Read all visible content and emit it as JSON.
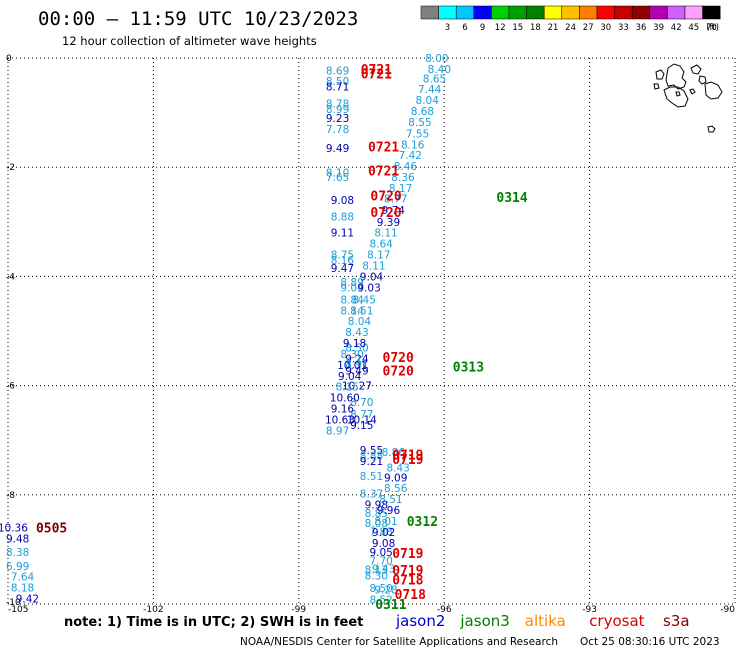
{
  "header": {
    "title": "00:00 – 11:59 UTC 10/23/2023",
    "subtitle": "12 hour collection of altimeter wave heights"
  },
  "legend": {
    "unit": "(ft)",
    "bins": [
      {
        "label": "",
        "color": "#808080"
      },
      {
        "label": "3",
        "color": "#00ffff"
      },
      {
        "label": "6",
        "color": "#00c8ff"
      },
      {
        "label": "9",
        "color": "#0000ff"
      },
      {
        "label": "12",
        "color": "#00d000"
      },
      {
        "label": "15",
        "color": "#00a000"
      },
      {
        "label": "18",
        "color": "#008000"
      },
      {
        "label": "21",
        "color": "#ffff00"
      },
      {
        "label": "24",
        "color": "#ffc000"
      },
      {
        "label": "27",
        "color": "#ff8000"
      },
      {
        "label": "30",
        "color": "#ff0000"
      },
      {
        "label": "33",
        "color": "#c80000"
      },
      {
        "label": "36",
        "color": "#900000"
      },
      {
        "label": "39",
        "color": "#b000b0"
      },
      {
        "label": "42",
        "color": "#d060ff"
      },
      {
        "label": "45",
        "color": "#ffa0ff"
      },
      {
        "label": "70",
        "color": "#000000"
      }
    ]
  },
  "footer": {
    "note": "note: 1) Time is in UTC; 2) SWH is in feet",
    "satellites": [
      {
        "name": "jason2",
        "color": "#0000cc"
      },
      {
        "name": "jason3",
        "color": "#008000"
      },
      {
        "name": "altika",
        "color": "#ff8800"
      },
      {
        "name": "cryosat",
        "color": "#dd0000"
      },
      {
        "name": "s3a",
        "color": "#8b0000"
      }
    ],
    "credit": "NOAA/NESDIS Center for Satellite Applications and Research",
    "timestamp": "Oct 25 08:30:16 UTC 2023"
  },
  "colors": {
    "cyan": "#1a9fd8",
    "blue": "#0000b0",
    "red": "#dd0000",
    "green": "#008000",
    "darkred": "#7a0000"
  },
  "chart_data": {
    "type": "scatter",
    "title": "00:00 – 11:59 UTC 10/23/2023",
    "xlim": [
      -105,
      -90
    ],
    "ylim": [
      -10,
      0
    ],
    "x_ticks": [
      -105,
      -102,
      -99,
      -96,
      -93,
      -90
    ],
    "x_tick_labels": [
      "-105",
      "-102",
      "-99",
      "-96",
      "-93",
      "-90"
    ],
    "y_ticks": [
      0,
      -2,
      -4,
      -6,
      -8,
      -10
    ],
    "y_tick_labels": [
      "0",
      "-2",
      "-4",
      "-6",
      "-8",
      "-10"
    ],
    "grid": true,
    "map_outline": "Galapagos Islands (top-right)",
    "swh_points": [
      {
        "x": -98.2,
        "y": -0.23,
        "v": "8.69",
        "c": "cyan"
      },
      {
        "x": -98.2,
        "y": -0.42,
        "v": "8.50",
        "c": "cyan"
      },
      {
        "x": -98.2,
        "y": -0.52,
        "v": "8.71",
        "c": "blue"
      },
      {
        "x": -98.2,
        "y": -0.83,
        "v": "8.78",
        "c": "cyan"
      },
      {
        "x": -98.2,
        "y": -0.93,
        "v": "8.99",
        "c": "cyan"
      },
      {
        "x": -98.2,
        "y": -1.1,
        "v": "9.23",
        "c": "blue"
      },
      {
        "x": -98.2,
        "y": -1.3,
        "v": "7.78",
        "c": "cyan"
      },
      {
        "x": -98.2,
        "y": -1.65,
        "v": "9.49",
        "c": "blue"
      },
      {
        "x": -98.2,
        "y": -2.1,
        "v": "8.10",
        "c": "cyan"
      },
      {
        "x": -98.2,
        "y": -2.18,
        "v": "7.65",
        "c": "cyan"
      },
      {
        "x": -98.1,
        "y": -2.6,
        "v": "9.08",
        "c": "blue"
      },
      {
        "x": -98.1,
        "y": -2.9,
        "v": "8.88",
        "c": "cyan"
      },
      {
        "x": -98.1,
        "y": -3.2,
        "v": "9.11",
        "c": "blue"
      },
      {
        "x": -98.1,
        "y": -3.6,
        "v": "8.75",
        "c": "cyan"
      },
      {
        "x": -98.1,
        "y": -3.7,
        "v": "8.16",
        "c": "cyan"
      },
      {
        "x": -98.1,
        "y": -3.85,
        "v": "9.47",
        "c": "blue"
      },
      {
        "x": -97.9,
        "y": -4.1,
        "v": "8.89",
        "c": "cyan"
      },
      {
        "x": -97.9,
        "y": -4.2,
        "v": "9.04",
        "c": "cyan"
      },
      {
        "x": -97.9,
        "y": -4.42,
        "v": "8.84",
        "c": "cyan"
      },
      {
        "x": -97.9,
        "y": -4.62,
        "v": "8.14",
        "c": "cyan"
      },
      {
        "x": -97.8,
        "y": -5.3,
        "v": "8.50",
        "c": "cyan"
      },
      {
        "x": -97.8,
        "y": -5.5,
        "v": "9.24",
        "c": "blue"
      },
      {
        "x": -97.8,
        "y": -5.6,
        "v": "8.91",
        "c": "cyan"
      },
      {
        "x": -97.8,
        "y": -5.72,
        "v": "9.49",
        "c": "blue"
      },
      {
        "x": -97.8,
        "y": -6.0,
        "v": "10.27",
        "c": "blue"
      },
      {
        "x": -97.7,
        "y": -6.3,
        "v": "8.70",
        "c": "cyan"
      },
      {
        "x": -97.7,
        "y": -6.52,
        "v": "8.77",
        "c": "cyan"
      },
      {
        "x": -97.7,
        "y": -6.62,
        "v": "10.14",
        "c": "blue"
      },
      {
        "x": -97.7,
        "y": -6.72,
        "v": "9.15",
        "c": "blue"
      },
      {
        "x": -97.5,
        "y": -7.18,
        "v": "9.55",
        "c": "blue"
      },
      {
        "x": -97.5,
        "y": -7.28,
        "v": "8.88",
        "c": "cyan"
      },
      {
        "x": -97.5,
        "y": -7.38,
        "v": "9.21",
        "c": "blue"
      },
      {
        "x": -97.5,
        "y": -7.66,
        "v": "8.51",
        "c": "cyan"
      },
      {
        "x": -97.5,
        "y": -7.98,
        "v": "8.37",
        "c": "cyan"
      },
      {
        "x": -97.4,
        "y": -8.18,
        "v": "9.98",
        "c": "blue"
      },
      {
        "x": -97.4,
        "y": -8.33,
        "v": "8.85",
        "c": "cyan"
      },
      {
        "x": -97.4,
        "y": -8.52,
        "v": "8.08",
        "c": "cyan"
      },
      {
        "x": -97.3,
        "y": -8.67,
        "v": "7.88",
        "c": "cyan"
      },
      {
        "x": -97.3,
        "y": -9.05,
        "v": "9.05",
        "c": "blue"
      },
      {
        "x": -97.3,
        "y": -9.2,
        "v": "7.70",
        "c": "cyan"
      },
      {
        "x": -97.4,
        "y": -9.37,
        "v": "8.13",
        "c": "cyan"
      },
      {
        "x": -97.4,
        "y": -9.48,
        "v": "8.30",
        "c": "cyan"
      },
      {
        "x": -97.3,
        "y": -9.71,
        "v": "8.50",
        "c": "cyan"
      },
      {
        "x": -97.3,
        "y": -9.92,
        "v": "8.52",
        "c": "cyan"
      },
      {
        "x": -97.05,
        "y": -7.22,
        "v": "8.86",
        "c": "cyan"
      },
      {
        "x": -96.95,
        "y": -7.5,
        "v": "8.43",
        "c": "cyan"
      },
      {
        "x": -97.0,
        "y": -7.68,
        "v": "9.09",
        "c": "blue"
      },
      {
        "x": -97.0,
        "y": -7.88,
        "v": "8.56",
        "c": "cyan"
      },
      {
        "x": -97.1,
        "y": -8.08,
        "v": "8.51",
        "c": "cyan"
      },
      {
        "x": -97.15,
        "y": -8.28,
        "v": "9.96",
        "c": "blue"
      },
      {
        "x": -97.2,
        "y": -8.48,
        "v": "8.01",
        "c": "cyan"
      },
      {
        "x": -97.25,
        "y": -8.68,
        "v": "9.02",
        "c": "blue"
      },
      {
        "x": -97.25,
        "y": -8.88,
        "v": "9.08",
        "c": "blue"
      },
      {
        "x": -97.25,
        "y": -9.35,
        "v": "9.43",
        "c": "cyan"
      },
      {
        "x": -97.2,
        "y": -9.73,
        "v": "9.28",
        "c": "cyan"
      },
      {
        "x": -96.15,
        "y": -0.0,
        "v": "8.00",
        "c": "cyan"
      },
      {
        "x": -96.1,
        "y": -0.2,
        "v": "8.40",
        "c": "cyan"
      },
      {
        "x": -96.2,
        "y": -0.38,
        "v": "8.65",
        "c": "cyan"
      },
      {
        "x": -96.3,
        "y": -0.57,
        "v": "7.44",
        "c": "cyan"
      },
      {
        "x": -96.35,
        "y": -0.77,
        "v": "8.04",
        "c": "cyan"
      },
      {
        "x": -96.45,
        "y": -0.97,
        "v": "8.68",
        "c": "cyan"
      },
      {
        "x": -96.5,
        "y": -1.17,
        "v": "8.55",
        "c": "cyan"
      },
      {
        "x": -96.55,
        "y": -1.38,
        "v": "7.55",
        "c": "cyan"
      },
      {
        "x": -96.65,
        "y": -1.58,
        "v": "8.16",
        "c": "cyan"
      },
      {
        "x": -96.7,
        "y": -1.78,
        "v": "7.42",
        "c": "cyan"
      },
      {
        "x": -96.8,
        "y": -1.98,
        "v": "8.46",
        "c": "cyan"
      },
      {
        "x": -96.85,
        "y": -2.18,
        "v": "8.36",
        "c": "cyan"
      },
      {
        "x": -96.9,
        "y": -2.38,
        "v": "8.17",
        "c": "cyan"
      },
      {
        "x": -97.0,
        "y": -2.57,
        "v": "8.77",
        "c": "cyan"
      },
      {
        "x": -97.05,
        "y": -2.78,
        "v": "9.74",
        "c": "blue"
      },
      {
        "x": -97.15,
        "y": -3.0,
        "v": "9.39",
        "c": "blue"
      },
      {
        "x": -97.2,
        "y": -3.2,
        "v": "8.11",
        "c": "cyan"
      },
      {
        "x": -97.3,
        "y": -3.4,
        "v": "8.64",
        "c": "cyan"
      },
      {
        "x": -97.35,
        "y": -3.6,
        "v": "8.17",
        "c": "cyan"
      },
      {
        "x": -97.45,
        "y": -3.8,
        "v": "8.11",
        "c": "cyan"
      },
      {
        "x": -97.5,
        "y": -4.0,
        "v": "9.04",
        "c": "blue"
      },
      {
        "x": -97.55,
        "y": -4.2,
        "v": "9.03",
        "c": "blue"
      },
      {
        "x": -97.65,
        "y": -4.42,
        "v": "8.45",
        "c": "cyan"
      },
      {
        "x": -97.7,
        "y": -4.62,
        "v": "8.51",
        "c": "cyan"
      },
      {
        "x": -97.75,
        "y": -4.82,
        "v": "8.04",
        "c": "cyan"
      },
      {
        "x": -97.8,
        "y": -5.02,
        "v": "8.43",
        "c": "cyan"
      },
      {
        "x": -97.85,
        "y": -5.22,
        "v": "9.18",
        "c": "blue"
      },
      {
        "x": -97.9,
        "y": -5.42,
        "v": "8.30",
        "c": "cyan"
      },
      {
        "x": -97.9,
        "y": -5.62,
        "v": "10.01",
        "c": "blue"
      },
      {
        "x": -97.95,
        "y": -5.82,
        "v": "9.04",
        "c": "blue"
      },
      {
        "x": -98.0,
        "y": -6.02,
        "v": "8.15",
        "c": "cyan"
      },
      {
        "x": -98.05,
        "y": -6.22,
        "v": "10.60",
        "c": "blue"
      },
      {
        "x": -98.1,
        "y": -6.42,
        "v": "9.16",
        "c": "blue"
      },
      {
        "x": -98.15,
        "y": -6.62,
        "v": "10.63",
        "c": "blue"
      },
      {
        "x": -98.2,
        "y": -6.82,
        "v": "8.97",
        "c": "cyan"
      },
      {
        "x": -104.9,
        "y": -8.6,
        "v": "10.36",
        "c": "blue"
      },
      {
        "x": -104.8,
        "y": -8.8,
        "v": "9.48",
        "c": "blue"
      },
      {
        "x": -104.8,
        "y": -9.05,
        "v": "8.38",
        "c": "cyan"
      },
      {
        "x": -104.8,
        "y": -9.3,
        "v": "6.99",
        "c": "cyan"
      },
      {
        "x": -104.7,
        "y": -9.5,
        "v": "7.64",
        "c": "cyan"
      },
      {
        "x": -104.7,
        "y": -9.7,
        "v": "8.18",
        "c": "cyan"
      },
      {
        "x": -104.6,
        "y": -9.9,
        "v": "9.42",
        "c": "blue"
      }
    ],
    "time_labels": [
      {
        "x": -97.4,
        "y": -0.2,
        "t": "0721",
        "c": "red"
      },
      {
        "x": -97.4,
        "y": -0.28,
        "t": "0721",
        "c": "red"
      },
      {
        "x": -97.25,
        "y": -1.62,
        "t": "0721",
        "c": "red"
      },
      {
        "x": -97.25,
        "y": -2.06,
        "t": "0721",
        "c": "red"
      },
      {
        "x": -97.2,
        "y": -2.52,
        "t": "0720",
        "c": "red"
      },
      {
        "x": -97.2,
        "y": -2.82,
        "t": "0720",
        "c": "red"
      },
      {
        "x": -96.95,
        "y": -5.48,
        "t": "0720",
        "c": "red"
      },
      {
        "x": -96.95,
        "y": -5.72,
        "t": "0720",
        "c": "red"
      },
      {
        "x": -96.75,
        "y": -7.26,
        "t": "0719",
        "c": "red"
      },
      {
        "x": -96.75,
        "y": -7.34,
        "t": "0719",
        "c": "red"
      },
      {
        "x": -96.75,
        "y": -9.07,
        "t": "0719",
        "c": "red"
      },
      {
        "x": -96.75,
        "y": -9.38,
        "t": "0719",
        "c": "red"
      },
      {
        "x": -96.75,
        "y": -9.55,
        "t": "0718",
        "c": "red"
      },
      {
        "x": -96.7,
        "y": -9.82,
        "t": "0718",
        "c": "red"
      },
      {
        "x": -94.6,
        "y": -2.55,
        "t": "0314",
        "c": "green"
      },
      {
        "x": -95.5,
        "y": -5.65,
        "t": "0313",
        "c": "green"
      },
      {
        "x": -96.45,
        "y": -8.48,
        "t": "0312",
        "c": "green"
      },
      {
        "x": -97.1,
        "y": -10.0,
        "t": "0311",
        "c": "green"
      },
      {
        "x": -104.1,
        "y": -8.6,
        "t": "0505",
        "c": "darkred"
      }
    ]
  }
}
